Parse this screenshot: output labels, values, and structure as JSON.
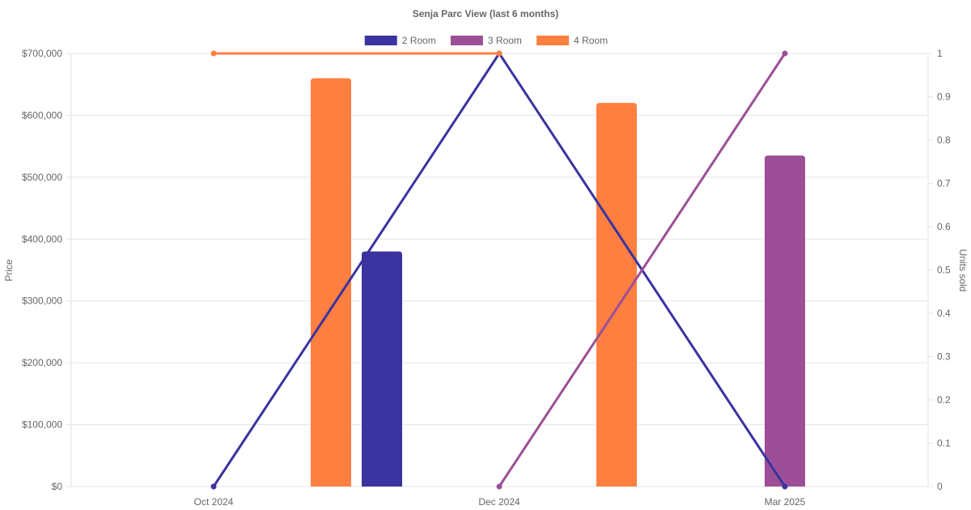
{
  "chart_data": {
    "type": "bar",
    "title": "Senja Parc View (last 6 months)",
    "categories": [
      "Oct 2024",
      "Dec 2024",
      "Mar 2025"
    ],
    "y_left": {
      "label": "Price",
      "range": [
        0,
        700000
      ],
      "ticks": [
        0,
        100000,
        200000,
        300000,
        400000,
        500000,
        600000,
        700000
      ],
      "tick_labels": [
        "$0",
        "$100,000",
        "$200,000",
        "$300,000",
        "$400,000",
        "$500,000",
        "$600,000",
        "$700,000"
      ]
    },
    "y_right": {
      "label": "Units sold",
      "range": [
        0,
        1
      ],
      "ticks": [
        0,
        0.1,
        0.2,
        0.3,
        0.4,
        0.5,
        0.6,
        0.7,
        0.8,
        0.9,
        1
      ],
      "tick_labels": [
        "0",
        "0.1",
        "0.2",
        "0.3",
        "0.4",
        "0.5",
        "0.6",
        "0.7",
        "0.8",
        "0.9",
        "1"
      ]
    },
    "legend_position": "top",
    "grid": true,
    "series": [
      {
        "name": "2 Room",
        "color": "#3a33a0",
        "bar_prices": [
          null,
          380000,
          null
        ],
        "units_sold": [
          0,
          1,
          0
        ]
      },
      {
        "name": "3 Room",
        "color": "#9c4f96",
        "bar_prices": [
          null,
          null,
          535000
        ],
        "units_sold": [
          null,
          0,
          1
        ]
      },
      {
        "name": "4 Room",
        "color": "#ff7f41",
        "bar_prices": [
          660000,
          620000,
          null
        ],
        "units_sold": [
          1,
          1,
          null
        ]
      }
    ]
  }
}
